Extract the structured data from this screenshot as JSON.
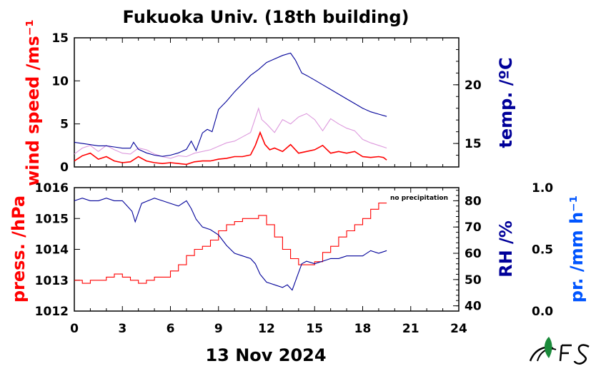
{
  "title": "Fukuoka Univ. (18th building)",
  "date_label": "13 Nov 2024",
  "note": "no precipitation",
  "colors": {
    "wind": "#ff0000",
    "wind_gust": "#dd99dd",
    "temp": "#000099",
    "pressure": "#ff0000",
    "rh": "#000099",
    "precip": "#0055ff"
  },
  "chart_data": [
    {
      "type": "line",
      "panel": "top",
      "xlim": [
        0,
        24
      ],
      "x_ticks": [
        "0",
        "3",
        "6",
        "9",
        "12",
        "15",
        "18",
        "21",
        "24"
      ],
      "left_axis": {
        "label": "wind speed /ms⁻¹",
        "ylim": [
          0,
          15
        ],
        "ticks": [
          "0",
          "5",
          "10",
          "15"
        ]
      },
      "right_axis": {
        "label": "temp. /ºC",
        "ylim": [
          13,
          24
        ],
        "ticks": [
          "15",
          "20"
        ]
      },
      "series": [
        {
          "key": "wind_gust",
          "axis": "left",
          "color": "#dd99dd",
          "x": [
            0,
            0.5,
            1,
            1.5,
            2,
            2.5,
            3,
            3.5,
            4,
            4.5,
            5,
            5.5,
            6,
            6.5,
            7,
            7.5,
            8,
            8.5,
            9,
            9.5,
            10,
            10.5,
            11,
            11.5,
            11.7,
            12,
            12.5,
            13,
            13.5,
            14,
            14.5,
            15,
            15.5,
            16,
            16.5,
            17,
            17.5,
            18,
            18.5,
            19,
            19.5
          ],
          "y": [
            1.5,
            2.2,
            2.5,
            1.8,
            2.5,
            2.0,
            1.6,
            1.5,
            2.2,
            2.0,
            1.5,
            1.2,
            1.0,
            1.3,
            1.2,
            1.6,
            1.8,
            2.0,
            2.4,
            2.8,
            3.0,
            3.5,
            4.0,
            6.8,
            5.5,
            5.0,
            4.0,
            5.5,
            5.0,
            5.8,
            6.2,
            5.5,
            4.2,
            5.6,
            5.0,
            4.5,
            4.2,
            3.2,
            2.8,
            2.5,
            2.2
          ]
        },
        {
          "key": "wind",
          "axis": "left",
          "color": "#ff0000",
          "x": [
            0,
            0.5,
            1,
            1.5,
            2,
            2.5,
            3,
            3.5,
            4,
            4.5,
            5,
            5.5,
            6,
            6.5,
            7,
            7.5,
            8,
            8.5,
            9,
            9.5,
            10,
            10.5,
            11,
            11.3,
            11.6,
            11.9,
            12.2,
            12.5,
            13,
            13.5,
            14,
            14.5,
            15,
            15.5,
            16,
            16.5,
            17,
            17.5,
            18,
            18.5,
            19,
            19.3,
            19.5
          ],
          "y": [
            0.7,
            1.3,
            1.6,
            0.9,
            1.2,
            0.7,
            0.5,
            0.6,
            1.2,
            0.7,
            0.5,
            0.4,
            0.5,
            0.4,
            0.3,
            0.6,
            0.7,
            0.7,
            0.9,
            1.0,
            1.2,
            1.2,
            1.4,
            2.5,
            4.0,
            2.6,
            2.0,
            2.2,
            1.8,
            2.6,
            1.6,
            1.8,
            2.0,
            2.5,
            1.6,
            1.8,
            1.6,
            1.8,
            1.2,
            1.1,
            1.2,
            1.1,
            0.8
          ]
        },
        {
          "key": "temp",
          "axis": "right",
          "color": "#000099",
          "x": [
            0,
            0.5,
            1,
            1.5,
            2,
            2.5,
            3,
            3.5,
            3.7,
            4,
            4.5,
            5,
            5.5,
            6,
            6.5,
            7,
            7.3,
            7.6,
            8,
            8.3,
            8.6,
            9,
            9.5,
            10,
            10.5,
            11,
            11.5,
            12,
            12.5,
            13,
            13.5,
            13.8,
            14.2,
            14.5,
            15,
            15.5,
            16,
            16.5,
            17,
            17.5,
            18,
            18.5,
            19,
            19.5
          ],
          "y": [
            15.1,
            15.0,
            14.9,
            14.8,
            14.8,
            14.7,
            14.6,
            14.6,
            15.1,
            14.5,
            14.2,
            14.0,
            13.9,
            14.0,
            14.2,
            14.5,
            15.2,
            14.4,
            15.9,
            16.2,
            16.0,
            17.9,
            18.6,
            19.4,
            20.1,
            20.8,
            21.3,
            21.9,
            22.2,
            22.5,
            22.7,
            22.1,
            21.0,
            20.8,
            20.4,
            20.0,
            19.6,
            19.2,
            18.8,
            18.4,
            18.0,
            17.7,
            17.5,
            17.3
          ]
        }
      ]
    },
    {
      "type": "line",
      "panel": "bottom",
      "xlim": [
        0,
        24
      ],
      "x_ticks": [
        "0",
        "3",
        "6",
        "9",
        "12",
        "15",
        "18",
        "21",
        "24"
      ],
      "xlabel": "13 Nov 2024",
      "left_axis": {
        "label": "press. /hPa",
        "ylim": [
          1012,
          1016
        ],
        "ticks": [
          "1012",
          "1013",
          "1014",
          "1015",
          "1016"
        ]
      },
      "right_axis": {
        "label": "RH /%",
        "ylim": [
          38,
          85
        ],
        "ticks": [
          "40",
          "50",
          "60",
          "70",
          "80"
        ]
      },
      "precip_axis": {
        "label": "pr. /mm h⁻¹",
        "ylim": [
          0.0,
          1.0
        ],
        "ticks": [
          "0.0",
          "0.5",
          "1.0"
        ]
      },
      "series": [
        {
          "key": "pressure",
          "axis": "left",
          "color": "#ff0000",
          "step": true,
          "x": [
            0,
            0.5,
            1,
            1.5,
            2,
            2.5,
            3,
            3.5,
            4,
            4.5,
            5,
            5.5,
            6,
            6.5,
            7,
            7.5,
            8,
            8.5,
            9,
            9.5,
            10,
            10.5,
            11,
            11.5,
            12,
            12.5,
            13,
            13.5,
            14,
            14.5,
            15,
            15.5,
            16,
            16.5,
            17,
            17.5,
            18,
            18.5,
            19,
            19.5
          ],
          "y": [
            1013.0,
            1012.9,
            1013.0,
            1013.0,
            1013.1,
            1013.2,
            1013.1,
            1013.0,
            1012.9,
            1013.0,
            1013.1,
            1013.1,
            1013.3,
            1013.5,
            1013.8,
            1014.0,
            1014.1,
            1014.3,
            1014.6,
            1014.8,
            1014.9,
            1015.0,
            1015.0,
            1015.1,
            1014.8,
            1014.4,
            1014.0,
            1013.7,
            1013.5,
            1013.5,
            1013.6,
            1013.9,
            1014.1,
            1014.4,
            1014.6,
            1014.8,
            1015.0,
            1015.3,
            1015.5,
            1015.5
          ]
        },
        {
          "key": "rh",
          "axis": "right",
          "color": "#000099",
          "x": [
            0,
            0.5,
            1,
            1.5,
            2,
            2.5,
            3,
            3.3,
            3.6,
            3.8,
            4.2,
            4.6,
            5,
            5.5,
            6,
            6.5,
            7,
            7.3,
            7.6,
            8,
            8.5,
            9,
            9.5,
            10,
            10.5,
            11,
            11.3,
            11.6,
            12,
            12.5,
            13,
            13.3,
            13.6,
            13.9,
            14.2,
            14.5,
            15,
            15.5,
            16,
            16.5,
            17,
            17.5,
            18,
            18.5,
            19,
            19.5
          ],
          "y": [
            80,
            81,
            80,
            80,
            81,
            80,
            80,
            78,
            76,
            72,
            79,
            80,
            81,
            80,
            79,
            78,
            80,
            77,
            73,
            70,
            69,
            67,
            63,
            60,
            59,
            58,
            56,
            52,
            49,
            48,
            47,
            48,
            46,
            51,
            56,
            57,
            56,
            57,
            58,
            58,
            59,
            59,
            59,
            61,
            60,
            61
          ]
        }
      ]
    }
  ]
}
